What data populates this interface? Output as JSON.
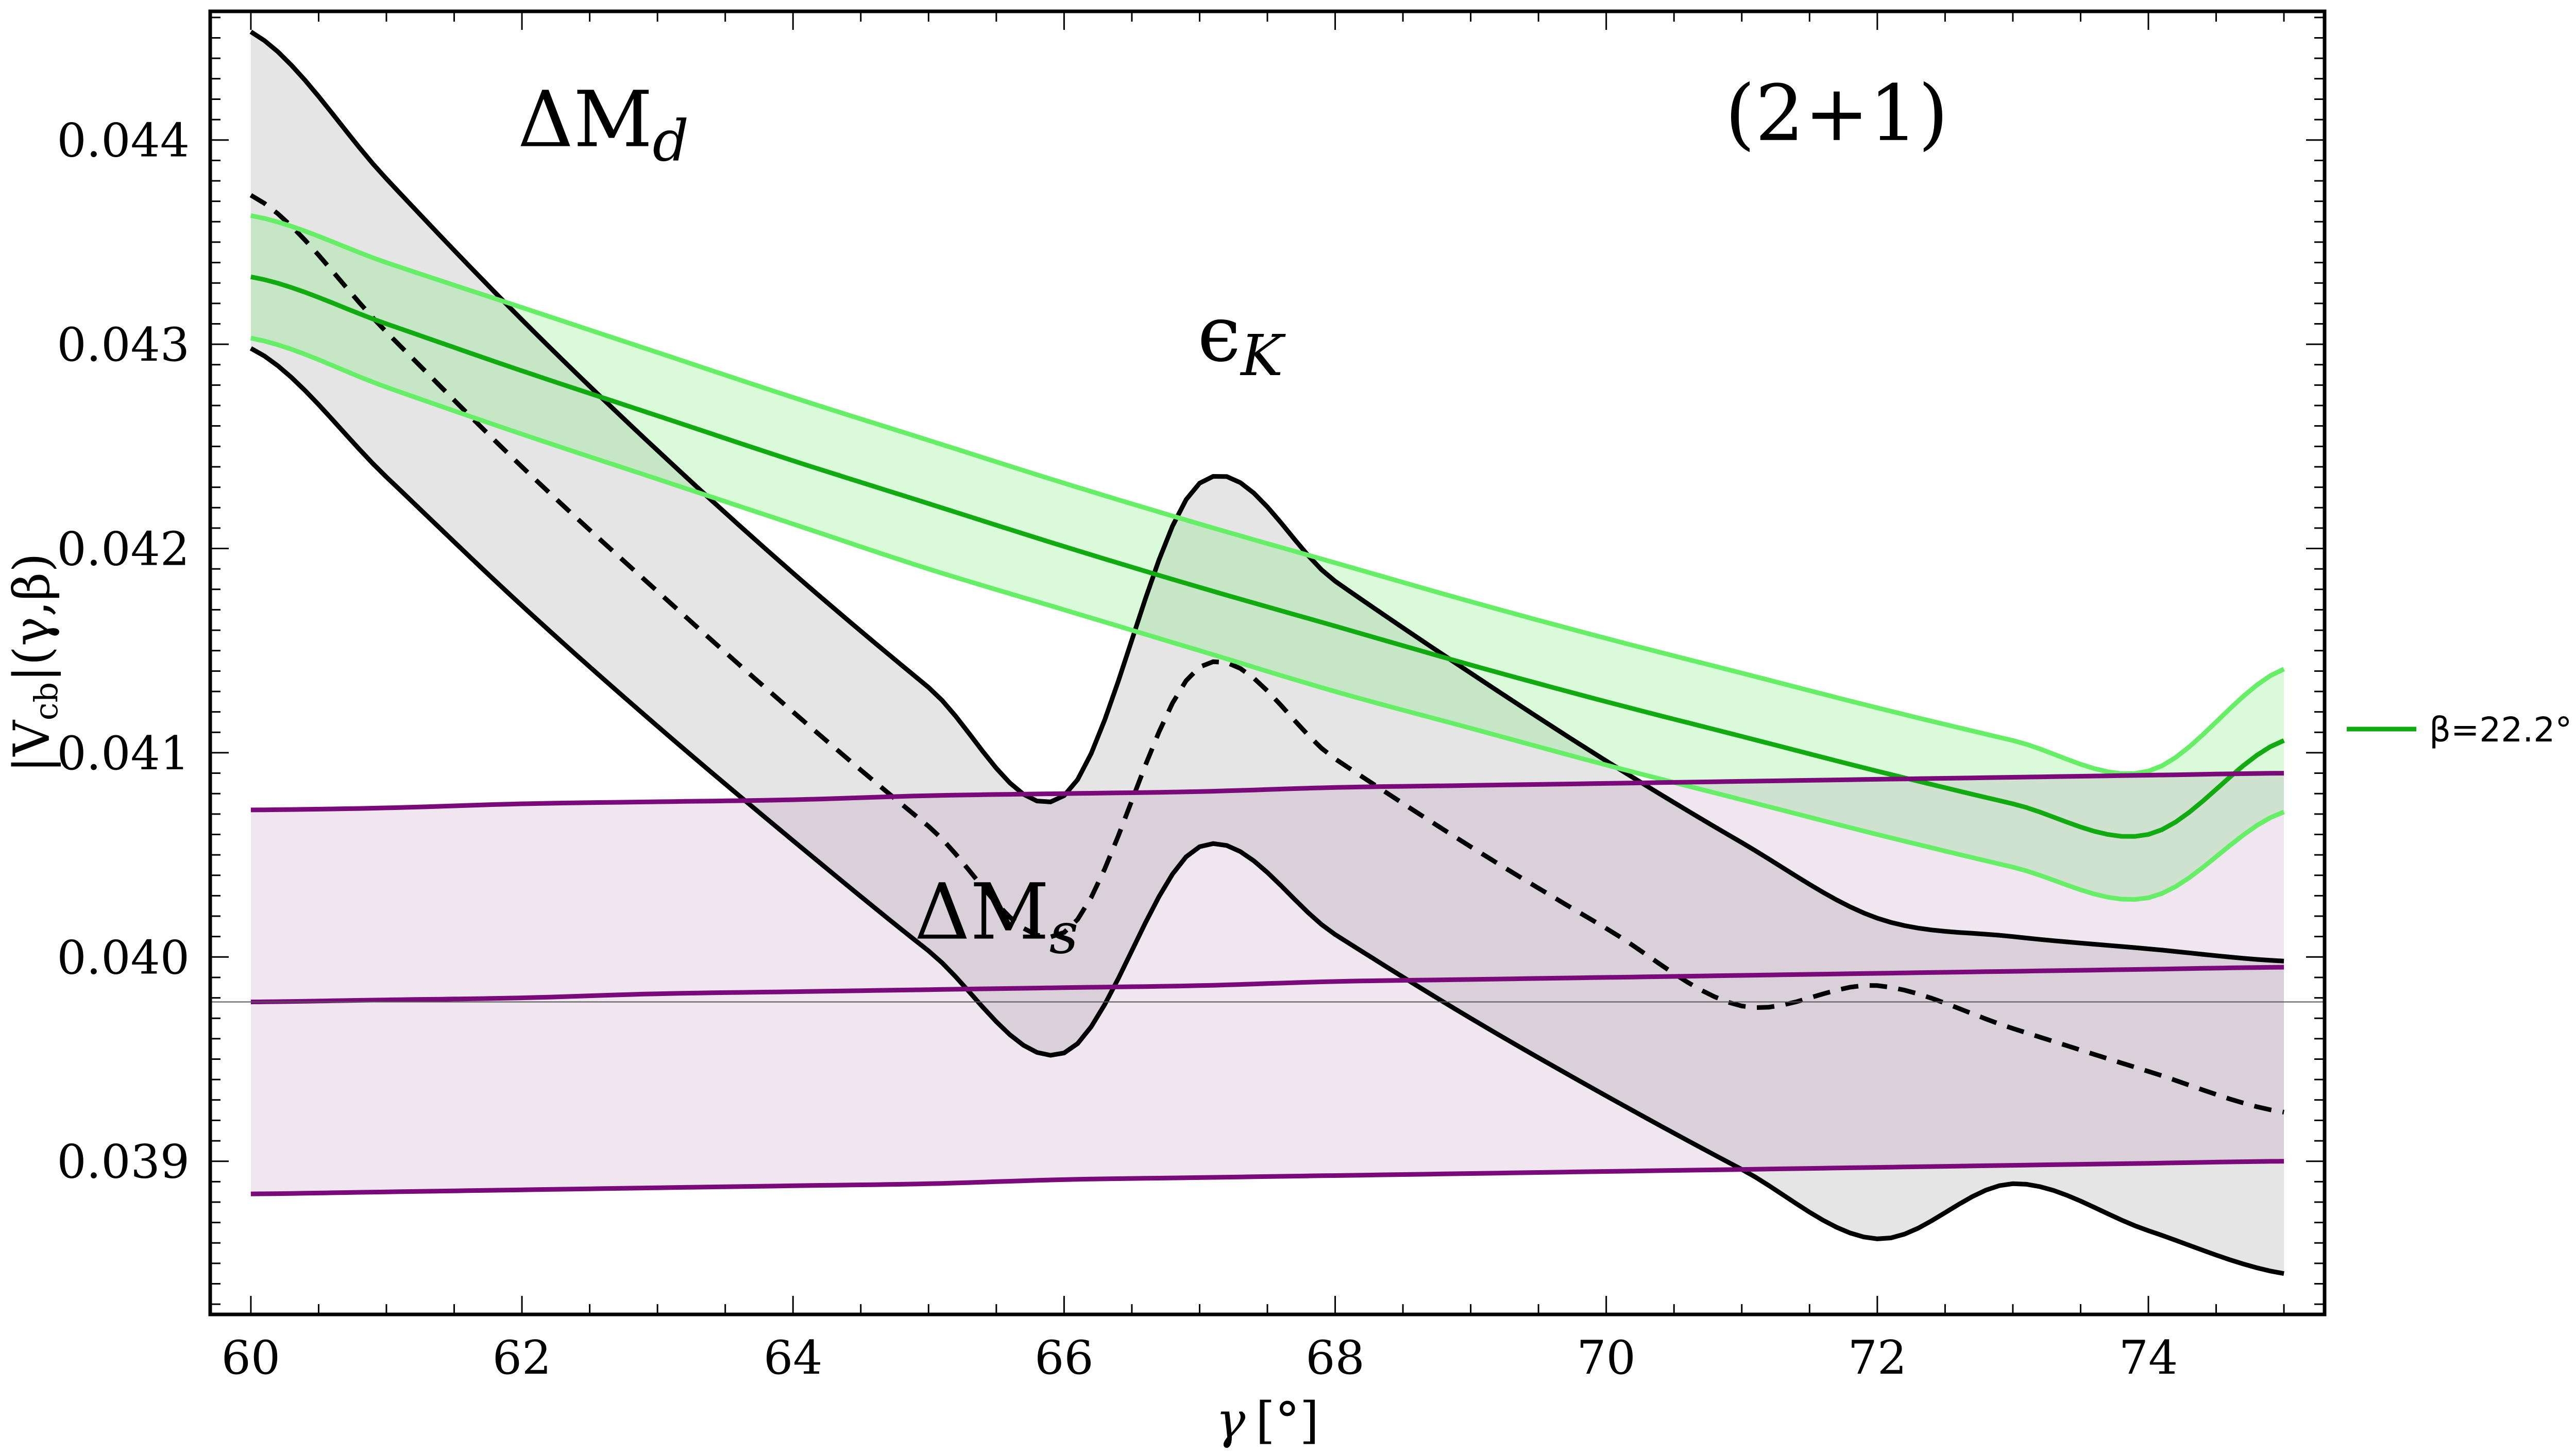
{
  "chart_data": {
    "type": "line",
    "title": "",
    "xlabel_symbol": "γ",
    "xlabel_unit": "[°]",
    "ylabel_abs": "|V",
    "ylabel_sub": "cb",
    "ylabel_rest": "|(γ,β)",
    "xlim": [
      59.7,
      75.3
    ],
    "ylim": [
      0.03825,
      0.04463
    ],
    "grid": false,
    "x_ticks": [
      60,
      62,
      64,
      66,
      68,
      70,
      72,
      74
    ],
    "y_ticks": [
      0.039,
      0.04,
      0.041,
      0.042,
      0.043,
      0.044
    ],
    "x_tick_labels": [
      "60",
      "62",
      "64",
      "66",
      "68",
      "70",
      "72",
      "74"
    ],
    "y_tick_labels": [
      "0.039",
      "0.040",
      "0.041",
      "0.042",
      "0.043",
      "0.044"
    ],
    "reference_line_y": 0.03978,
    "x": [
      60,
      61,
      62,
      63,
      64,
      65,
      66,
      67,
      68,
      69,
      70,
      71,
      72,
      73,
      74,
      75
    ],
    "series": [
      {
        "name": "ΔMd upper",
        "color": "#000000",
        "style": "solid",
        "values": [
          0.04453,
          0.04381,
          0.04312,
          0.04248,
          0.04188,
          0.04132,
          0.04079,
          0.04232,
          0.04184,
          0.04139,
          0.04096,
          0.04056,
          0.04019,
          0.0401,
          0.04004,
          0.03998
        ]
      },
      {
        "name": "ΔMd central",
        "color": "#000000",
        "style": "dashed",
        "values": [
          0.04373,
          0.04306,
          0.0424,
          0.04179,
          0.0412,
          0.04064,
          0.04012,
          0.04142,
          0.04097,
          0.04054,
          0.04014,
          0.03976,
          0.03986,
          0.03965,
          0.03944,
          0.03924
        ]
      },
      {
        "name": "ΔMd lower",
        "color": "#000000",
        "style": "solid",
        "values": [
          0.04298,
          0.04235,
          0.04172,
          0.04113,
          0.04057,
          0.04003,
          0.03953,
          0.04054,
          0.04011,
          0.0397,
          0.03932,
          0.03896,
          0.03862,
          0.03889,
          0.03866,
          0.03845
        ]
      },
      {
        "name": "εK upper",
        "color": "#66EE66",
        "style": "solid",
        "values": [
          0.04363,
          0.0434,
          0.04318,
          0.04296,
          0.04274,
          0.04253,
          0.04232,
          0.04212,
          0.04193,
          0.04174,
          0.04156,
          0.04139,
          0.04122,
          0.04106,
          0.04091,
          0.04141
        ]
      },
      {
        "name": "εK central",
        "color": "#11AA11",
        "style": "solid",
        "values": [
          0.04333,
          0.0431,
          0.04287,
          0.04265,
          0.04243,
          0.04222,
          0.04201,
          0.04181,
          0.04162,
          0.04143,
          0.04125,
          0.04108,
          0.04091,
          0.04075,
          0.0406,
          0.04106
        ]
      },
      {
        "name": "εK lower",
        "color": "#66EE66",
        "style": "solid",
        "values": [
          0.04303,
          0.04279,
          0.04256,
          0.04234,
          0.04212,
          0.0419,
          0.0417,
          0.0415,
          0.0413,
          0.04112,
          0.04094,
          0.04077,
          0.0406,
          0.04044,
          0.04029,
          0.04071
        ]
      },
      {
        "name": "ΔMs upper",
        "color": "#7A0A7A",
        "style": "solid",
        "values": [
          0.04072,
          0.04073,
          0.04075,
          0.04076,
          0.04077,
          0.04079,
          0.0408,
          0.04081,
          0.04083,
          0.04084,
          0.04085,
          0.04086,
          0.04087,
          0.04088,
          0.04089,
          0.0409
        ]
      },
      {
        "name": "ΔMs central",
        "color": "#7A0A7A",
        "style": "solid",
        "values": [
          0.03978,
          0.03979,
          0.0398,
          0.03982,
          0.03983,
          0.03984,
          0.03985,
          0.03986,
          0.03988,
          0.03989,
          0.0399,
          0.03991,
          0.03992,
          0.03993,
          0.03994,
          0.03995
        ]
      },
      {
        "name": "ΔMs lower",
        "color": "#7A0A7A",
        "style": "solid",
        "values": [
          0.03884,
          0.03885,
          0.03886,
          0.03887,
          0.03888,
          0.03889,
          0.03891,
          0.03892,
          0.03893,
          0.03894,
          0.03895,
          0.03896,
          0.03897,
          0.03898,
          0.03899,
          0.039
        ]
      }
    ],
    "bands": [
      {
        "name": "ΔMd band",
        "upper": "ΔMd upper",
        "lower": "ΔMd lower",
        "fill": "#7F7F7F",
        "opacity": 0.2
      },
      {
        "name": "εK band",
        "upper": "εK upper",
        "lower": "εK lower",
        "fill": "#66EE66",
        "opacity": 0.25
      },
      {
        "name": "ΔMs band",
        "upper": "ΔMs upper",
        "lower": "ΔMs lower",
        "fill": "#9A5A9A",
        "opacity": 0.15
      }
    ],
    "annotations": [
      {
        "id": "dmd",
        "main": "ΔM",
        "sub": "d",
        "x": 62.6,
        "y": 0.04397
      },
      {
        "id": "eps",
        "main": "ϵ",
        "sub": "K",
        "x": 67.3,
        "y": 0.04292
      },
      {
        "id": "dms",
        "main": "ΔM",
        "sub": "s",
        "x": 65.5,
        "y": 0.04009
      },
      {
        "id": "lat",
        "main": "(2+1)",
        "sub": "",
        "x": 71.7,
        "y": 0.044
      }
    ],
    "legend": {
      "placement": "right",
      "entries": [
        {
          "label": "β=22.2°",
          "color": "#11AA11"
        }
      ]
    }
  }
}
